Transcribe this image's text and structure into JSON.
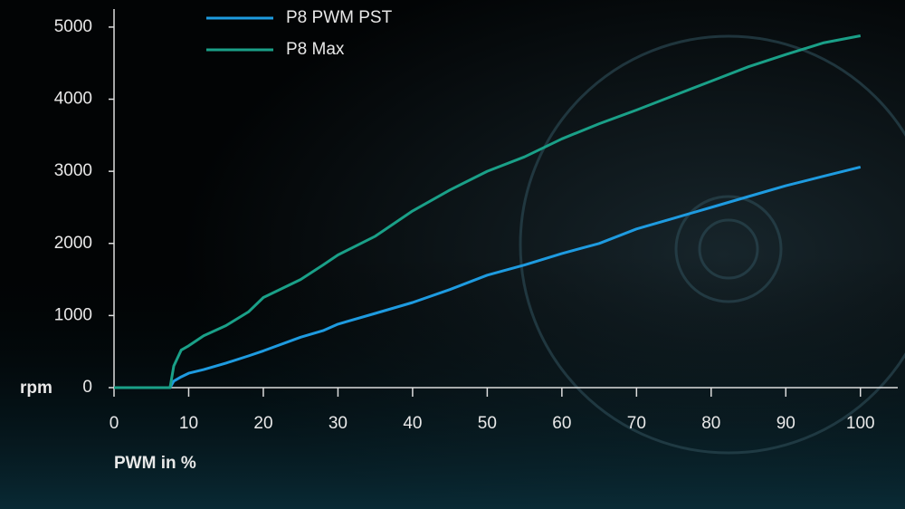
{
  "chart_data": {
    "type": "line",
    "x_label": "PWM in %",
    "y_label": "rpm",
    "x": [
      0,
      7.5,
      8,
      9,
      10,
      12,
      15,
      18,
      20,
      25,
      28,
      30,
      35,
      40,
      45,
      50,
      55,
      60,
      65,
      70,
      75,
      80,
      85,
      90,
      95,
      100
    ],
    "series": [
      {
        "name": "P8 PWM PST",
        "color": "#1e9be0",
        "values": [
          0,
          0,
          90,
          150,
          200,
          250,
          340,
          440,
          510,
          700,
          790,
          880,
          1030,
          1180,
          1360,
          1560,
          1700,
          1860,
          2000,
          2200,
          2350,
          2500,
          2650,
          2800,
          2930,
          3060
        ]
      },
      {
        "name": "P8 Max",
        "color": "#1aa088",
        "values": [
          0,
          0,
          300,
          520,
          580,
          720,
          860,
          1050,
          1250,
          1500,
          1700,
          1840,
          2100,
          2450,
          2740,
          3000,
          3200,
          3450,
          3660,
          3850,
          4050,
          4250,
          4450,
          4620,
          4780,
          4880
        ]
      }
    ],
    "xlim": [
      0,
      105
    ],
    "xticks": [
      0,
      10,
      20,
      30,
      40,
      50,
      60,
      70,
      80,
      90,
      100
    ],
    "ylim": [
      0,
      5250
    ],
    "yticks": [
      0,
      1000,
      2000,
      3000,
      4000,
      5000
    ]
  }
}
